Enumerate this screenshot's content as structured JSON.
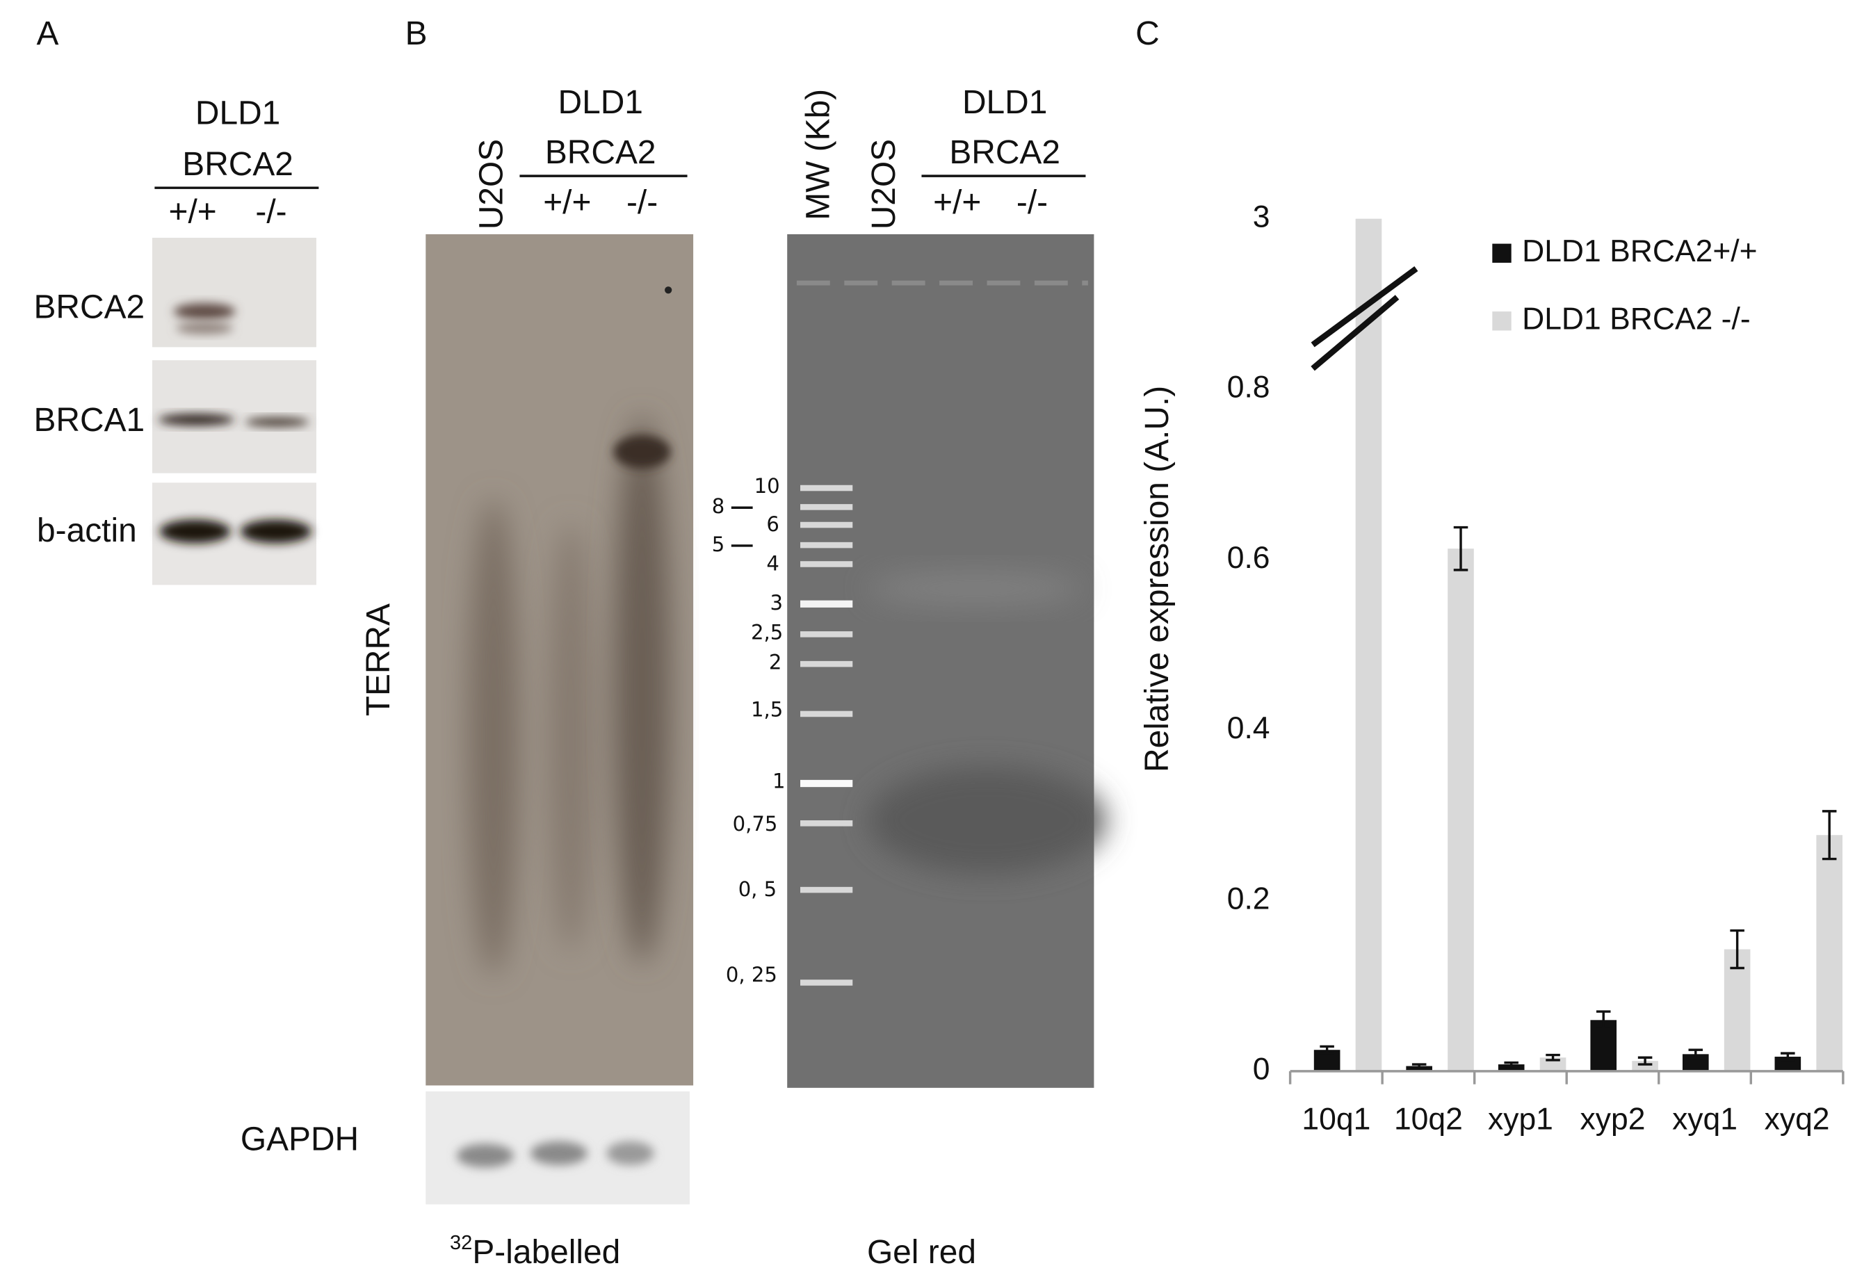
{
  "panels": {
    "a": {
      "letter": "A",
      "cell_line": "DLD1",
      "gene": "BRCA2",
      "genotypes": [
        "+/+",
        "-/-"
      ],
      "blots": [
        "BRCA2",
        "BRCA1",
        "b-actin"
      ]
    },
    "b": {
      "letter": "B",
      "terra_lanes": [
        "U2OS"
      ],
      "cell_line": "DLD1",
      "gene": "BRCA2",
      "genotypes": [
        "+/+",
        "-/-"
      ],
      "probe": "TERRA",
      "loading": "GAPDH",
      "terra_caption": {
        "superscript": "32",
        "text": "P-labelled"
      },
      "gel_lanes": [
        "MW (Kb)",
        "U2OS"
      ],
      "gel_cell_line": "DLD1",
      "gel_gene": "BRCA2",
      "gel_genotypes": [
        "+/+",
        "-/-"
      ],
      "ladder_labels": [
        "10",
        "8",
        "6",
        "5",
        "4",
        "3",
        "2,5",
        "2",
        "1,5",
        "1",
        "0,75",
        "0, 5",
        "0, 25"
      ],
      "gel_caption": "Gel red"
    },
    "c": {
      "letter": "C"
    }
  },
  "chart_data": {
    "type": "bar",
    "y_label": "Relative expression (A.U.)",
    "categories": [
      "10q1",
      "10q2",
      "xyp1",
      "xyp2",
      "xyq1",
      "xyq2"
    ],
    "series": [
      {
        "name": "DLD1 BRCA2+/+",
        "color": "#111111",
        "values": [
          0.025,
          0.006,
          0.008,
          0.06,
          0.02,
          0.017
        ],
        "errors": [
          0.004,
          0.002,
          0.002,
          0.01,
          0.005,
          0.004
        ]
      },
      {
        "name": "DLD1 BRCA2 -/-",
        "color": "#d9d9d9",
        "values": [
          3,
          0.613,
          0.016,
          0.012,
          0.143,
          0.277
        ],
        "errors": [
          0,
          0.025,
          0.003,
          0.004,
          0.022,
          0.028
        ]
      }
    ],
    "ylim": [
      0,
      3
    ],
    "yticks": [
      0,
      0.2,
      0.4,
      0.6,
      0.8,
      3
    ],
    "axis_break": true,
    "legend": "top-right"
  }
}
